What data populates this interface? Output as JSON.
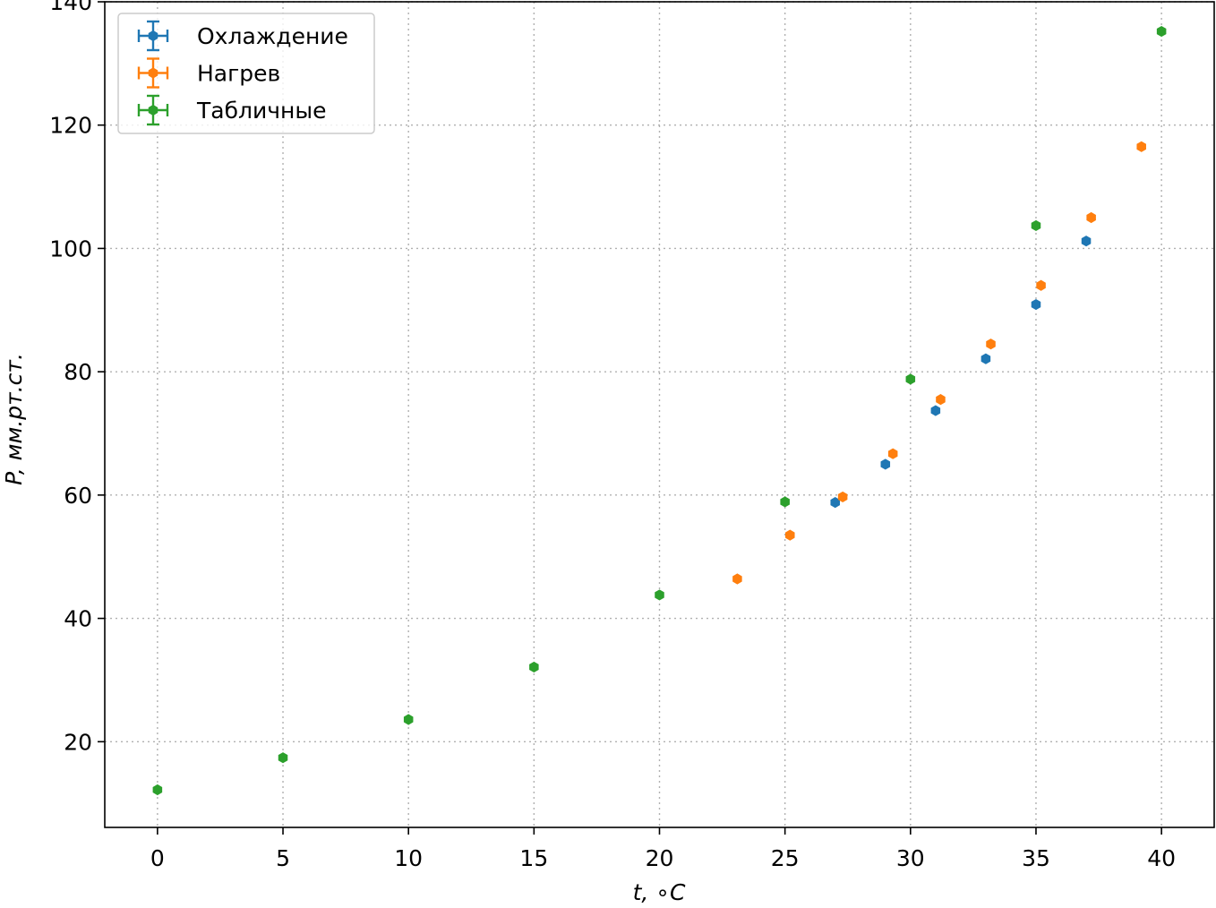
{
  "chart_data": {
    "type": "scatter",
    "xlabel": "t, ∘C",
    "ylabel": "P, мм.рт.ст.",
    "xlim": [
      -2.1,
      42.1
    ],
    "ylim": [
      6.1,
      140.0
    ],
    "xticks": [
      0,
      5,
      10,
      15,
      20,
      25,
      30,
      35,
      40
    ],
    "yticks": [
      20,
      40,
      60,
      80,
      100,
      120,
      140
    ],
    "grid": true,
    "legend_position": "top-left",
    "series": [
      {
        "name": "Охлаждение",
        "color": "#1f77b4",
        "marker": "hexagon",
        "error_bars": true,
        "x": [
          27.0,
          29.0,
          31.0,
          33.0,
          35.0,
          37.0
        ],
        "y": [
          58.8,
          65.0,
          73.7,
          82.1,
          90.9,
          101.2
        ]
      },
      {
        "name": "Нагрев",
        "color": "#ff7f0e",
        "marker": "hexagon",
        "error_bars": true,
        "x": [
          23.1,
          25.2,
          27.3,
          29.3,
          31.2,
          33.2,
          35.2,
          37.2,
          39.2
        ],
        "y": [
          46.4,
          53.5,
          59.7,
          66.7,
          75.5,
          84.5,
          94.0,
          105.0,
          116.5
        ]
      },
      {
        "name": "Табличные",
        "color": "#2ca02c",
        "marker": "hexagon",
        "error_bars": true,
        "x": [
          0,
          5,
          10,
          15,
          20,
          25,
          30,
          35,
          40
        ],
        "y": [
          12.2,
          17.4,
          23.6,
          32.1,
          43.8,
          58.9,
          78.8,
          103.7,
          135.2
        ]
      }
    ]
  }
}
